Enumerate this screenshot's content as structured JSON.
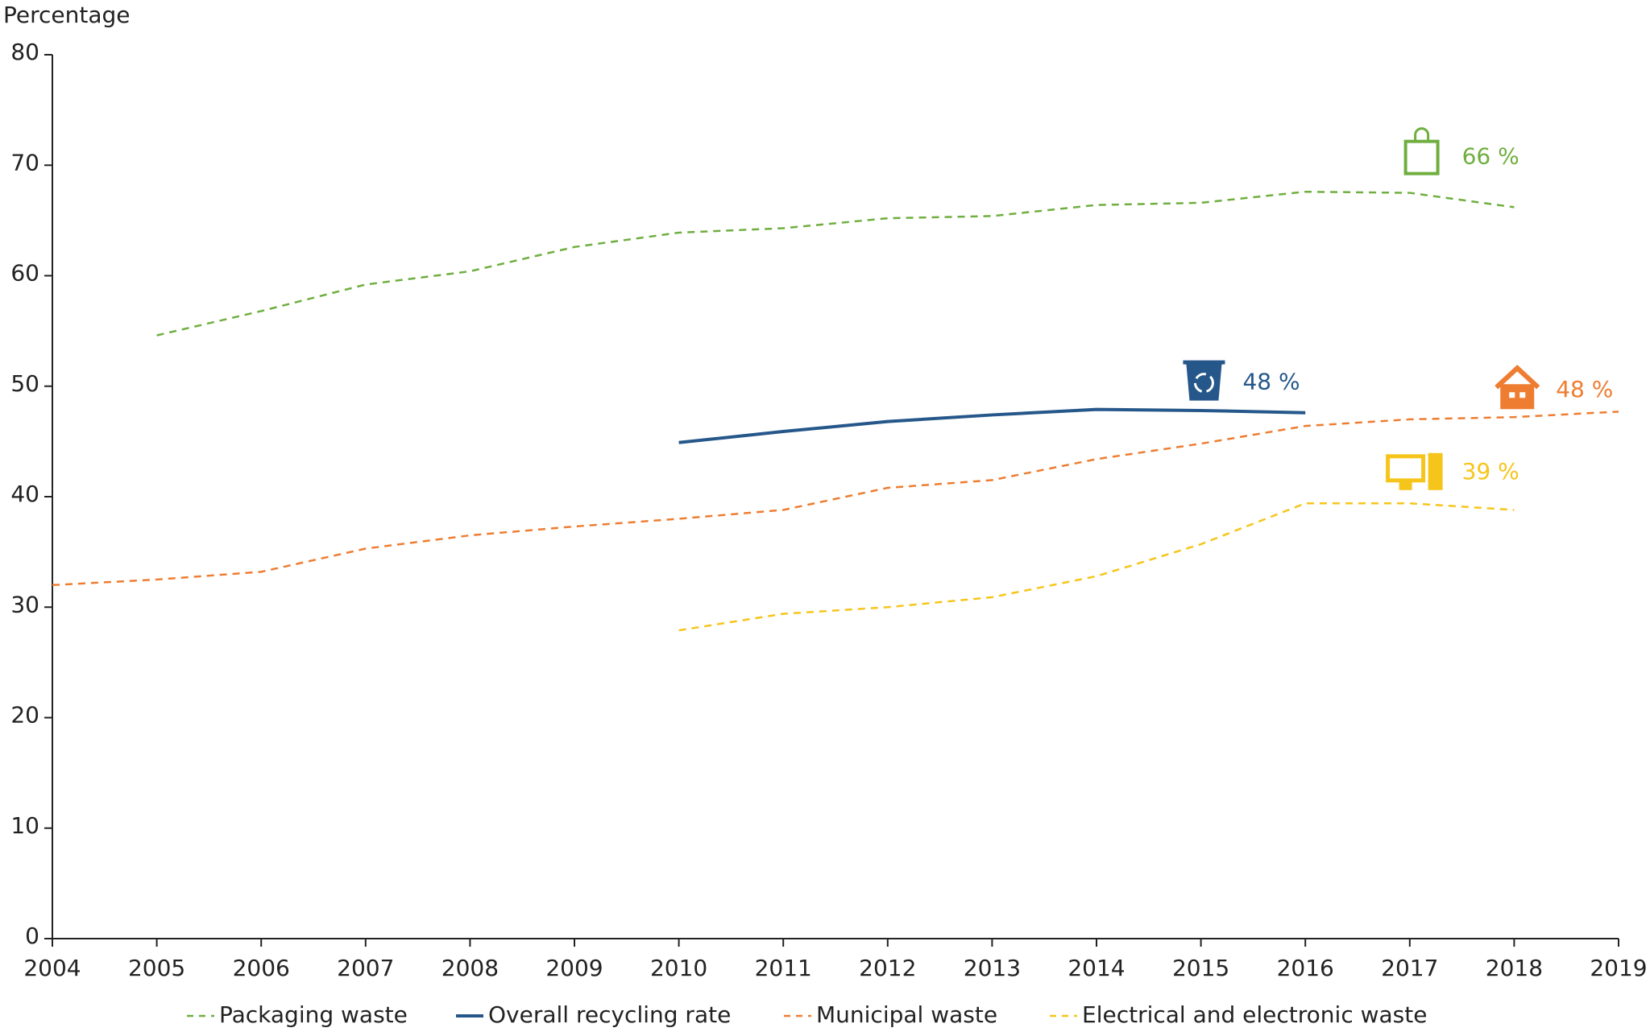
{
  "chart_data": {
    "type": "line",
    "y_axis_label": "Percentage",
    "x": [
      2004,
      2005,
      2006,
      2007,
      2008,
      2009,
      2010,
      2011,
      2012,
      2013,
      2014,
      2015,
      2016,
      2017,
      2018,
      2019
    ],
    "xlim": [
      2004,
      2019
    ],
    "xticks": [
      2004,
      2005,
      2006,
      2007,
      2008,
      2009,
      2010,
      2011,
      2012,
      2013,
      2014,
      2015,
      2016,
      2017,
      2018,
      2019
    ],
    "ylim": [
      0,
      80
    ],
    "yticks": [
      0,
      10,
      20,
      30,
      40,
      50,
      60,
      70,
      80
    ],
    "series": [
      {
        "name": "Packaging waste",
        "color": "#6fae3f",
        "style": "dashed",
        "values": [
          null,
          54.6,
          56.8,
          59.2,
          60.4,
          62.6,
          63.9,
          64.3,
          65.2,
          65.4,
          66.4,
          66.6,
          67.6,
          67.5,
          66.2,
          null
        ],
        "end_label": "66 %"
      },
      {
        "name": "Overall recycling rate",
        "color": "#25578a",
        "style": "solid",
        "values": [
          null,
          null,
          null,
          null,
          null,
          null,
          44.9,
          45.9,
          46.8,
          47.4,
          47.9,
          47.8,
          47.6,
          null,
          null,
          null
        ],
        "end_label": "48 %"
      },
      {
        "name": "Municipal waste",
        "color": "#ee7d31",
        "style": "dashed",
        "values": [
          32.0,
          32.5,
          33.2,
          35.3,
          36.5,
          37.3,
          38.0,
          38.8,
          40.8,
          41.5,
          43.4,
          44.8,
          46.4,
          47.0,
          47.2,
          47.7
        ],
        "end_label": "48 %"
      },
      {
        "name": "Electrical and electronic waste",
        "color": "#f6c51b",
        "style": "dashed",
        "values": [
          null,
          null,
          null,
          null,
          null,
          null,
          27.9,
          29.4,
          30.0,
          30.9,
          32.8,
          35.7,
          39.4,
          39.4,
          38.8,
          null
        ],
        "end_label": "39 %"
      }
    ]
  }
}
